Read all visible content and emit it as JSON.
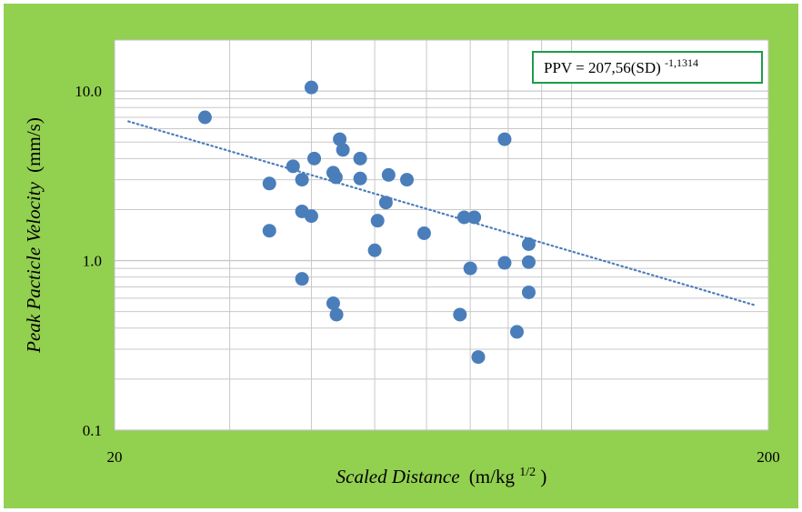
{
  "chart_data": {
    "type": "scatter",
    "x_scale": "log",
    "y_scale": "log",
    "xlim": [
      20,
      200
    ],
    "ylim": [
      0.1,
      20
    ],
    "x_tick_labels": [
      "20",
      "200"
    ],
    "y_tick_labels": [
      "0.1",
      "1.0",
      "10.0"
    ],
    "xlabel": {
      "italic": "Scaled Distance",
      "unit": "(m/kg",
      "sup": "1/2",
      "close": ")"
    },
    "ylabel": {
      "italic": "Peak Pacticle Velocity",
      "unit": "(mm/s)"
    },
    "grid": true,
    "annotation": {
      "text": "PPV = 207,56(SD)",
      "sup": "-1,1314"
    },
    "trendline": {
      "a": 207.56,
      "b": -1.1314,
      "x_range": [
        21,
        190
      ],
      "style": "dotted"
    },
    "points": [
      {
        "x": 27.5,
        "y": 7.0
      },
      {
        "x": 34.5,
        "y": 2.85
      },
      {
        "x": 34.5,
        "y": 1.5
      },
      {
        "x": 37.5,
        "y": 3.6
      },
      {
        "x": 38.7,
        "y": 3.0
      },
      {
        "x": 38.7,
        "y": 1.95
      },
      {
        "x": 38.7,
        "y": 0.78
      },
      {
        "x": 40.0,
        "y": 10.5
      },
      {
        "x": 40.0,
        "y": 1.83
      },
      {
        "x": 40.4,
        "y": 4.0
      },
      {
        "x": 43.2,
        "y": 3.3
      },
      {
        "x": 43.6,
        "y": 3.1
      },
      {
        "x": 43.2,
        "y": 0.56
      },
      {
        "x": 43.7,
        "y": 0.48
      },
      {
        "x": 44.2,
        "y": 5.2
      },
      {
        "x": 44.7,
        "y": 4.5
      },
      {
        "x": 47.5,
        "y": 4.0
      },
      {
        "x": 47.5,
        "y": 3.05
      },
      {
        "x": 50.0,
        "y": 1.15
      },
      {
        "x": 50.5,
        "y": 1.72
      },
      {
        "x": 52.0,
        "y": 2.2
      },
      {
        "x": 52.5,
        "y": 3.2
      },
      {
        "x": 56.0,
        "y": 3.0
      },
      {
        "x": 59.5,
        "y": 1.45
      },
      {
        "x": 67.5,
        "y": 0.48
      },
      {
        "x": 68.5,
        "y": 1.8
      },
      {
        "x": 70.0,
        "y": 0.9
      },
      {
        "x": 71.0,
        "y": 1.8
      },
      {
        "x": 72.0,
        "y": 0.27
      },
      {
        "x": 79.0,
        "y": 5.2
      },
      {
        "x": 79.0,
        "y": 0.97
      },
      {
        "x": 82.5,
        "y": 0.38
      },
      {
        "x": 86.0,
        "y": 1.25
      },
      {
        "x": 86.0,
        "y": 0.98
      },
      {
        "x": 86.0,
        "y": 0.65
      }
    ]
  },
  "colors": {
    "background": "#92d050",
    "plot_area": "#ffffff",
    "gridline": "#c8c8c8",
    "marker": "#4a7ebb",
    "trendline": "#4a7ebb",
    "annotation_border": "#1e9c4a"
  }
}
